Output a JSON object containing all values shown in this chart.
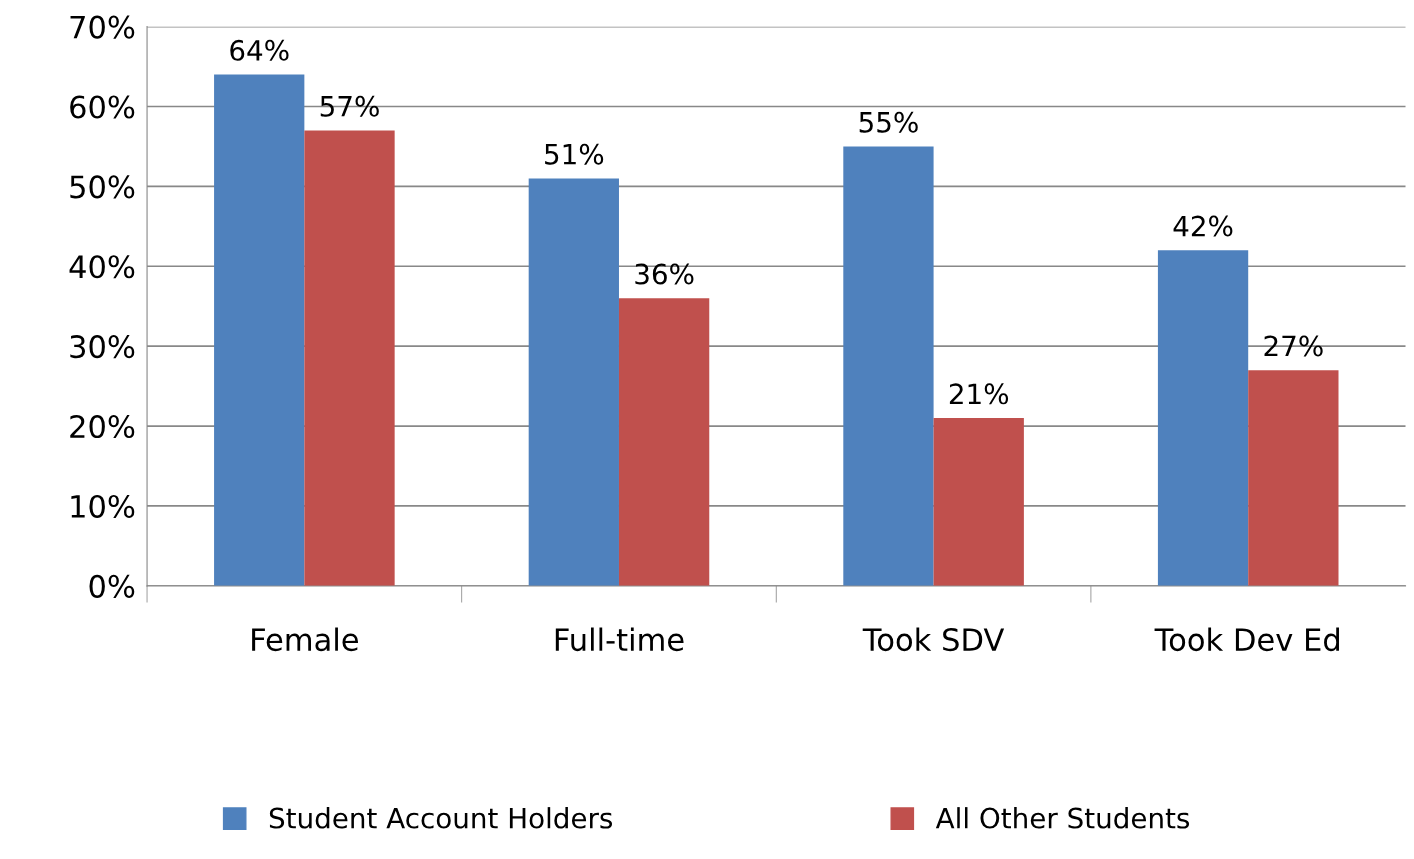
{
  "chart_data": {
    "type": "bar",
    "categories": [
      "Female",
      "Full-time",
      "Took SDV",
      "Took Dev Ed"
    ],
    "series": [
      {
        "name": "Student Account Holders",
        "color": "#4f81bd",
        "values": [
          64,
          51,
          55,
          42
        ],
        "value_labels": [
          "64%",
          "51%",
          "55%",
          "42%"
        ]
      },
      {
        "name": "All Other Students",
        "color": "#c0504d",
        "values": [
          57,
          36,
          21,
          27
        ],
        "value_labels": [
          "57%",
          "36%",
          "21%",
          "27%"
        ]
      }
    ],
    "ylim": [
      0,
      70
    ],
    "yticks": [
      {
        "value": 0,
        "label": "0%"
      },
      {
        "value": 10,
        "label": "10%"
      },
      {
        "value": 20,
        "label": "20%"
      },
      {
        "value": 30,
        "label": "30%"
      },
      {
        "value": 40,
        "label": "40%"
      },
      {
        "value": 50,
        "label": "50%"
      },
      {
        "value": 60,
        "label": "60%"
      },
      {
        "value": 70,
        "label": "70%"
      }
    ],
    "grid": "y",
    "legend": "bottom"
  }
}
